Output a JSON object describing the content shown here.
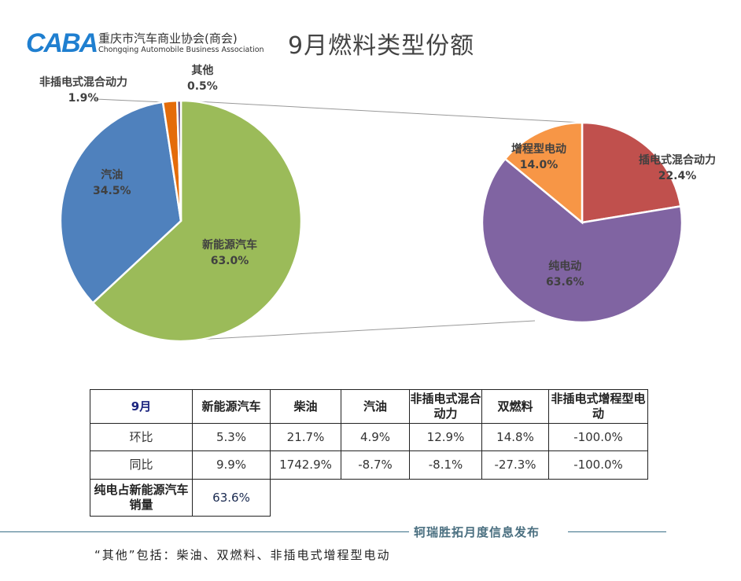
{
  "logo": {
    "mark": "CABA",
    "name_cn": "重庆市汽车商业协会(商会)",
    "name_en": "Chongqing Automobile Business Association"
  },
  "title": "9月燃料类型份额",
  "chart_data": [
    {
      "type": "pie",
      "slices": [
        {
          "label": "新能源汽车",
          "value": 63.0,
          "display": "63.0%",
          "color": "#9bbb59"
        },
        {
          "label": "汽油",
          "value": 34.5,
          "display": "34.5%",
          "color": "#4f81bd"
        },
        {
          "label": "非插电式混合动力",
          "value": 1.9,
          "display": "1.9%",
          "color": "#e46c0a"
        },
        {
          "label": "其他",
          "value": 0.5,
          "display": "0.5%",
          "color": "#604a7b"
        }
      ]
    },
    {
      "type": "pie",
      "slices": [
        {
          "label": "插电式混合动力",
          "value": 22.4,
          "display": "22.4%",
          "color": "#c0504d"
        },
        {
          "label": "纯电动",
          "value": 63.6,
          "display": "63.6%",
          "color": "#8064a2"
        },
        {
          "label": "增程型电动",
          "value": 14.0,
          "display": "14.0%",
          "color": "#f79646"
        }
      ]
    }
  ],
  "table": {
    "header": [
      "9月",
      "新能源汽车",
      "柴油",
      "汽油",
      "非插电式混合动力",
      "双燃料",
      "非插电式增程型电动"
    ],
    "rows": [
      [
        "环比",
        "5.3%",
        "21.7%",
        "4.9%",
        "12.9%",
        "14.8%",
        "-100.0%"
      ],
      [
        "同比",
        "9.9%",
        "1742.9%",
        "-8.7%",
        "-8.1%",
        "-27.3%",
        "-100.0%"
      ]
    ],
    "last_row": {
      "label": "纯电占新能源汽车销量",
      "value": "63.6%"
    }
  },
  "footer": "轲瑞胜拓月度信息发布",
  "note": "“其他”包括：柴油、双燃料、非插电式增程型电动"
}
